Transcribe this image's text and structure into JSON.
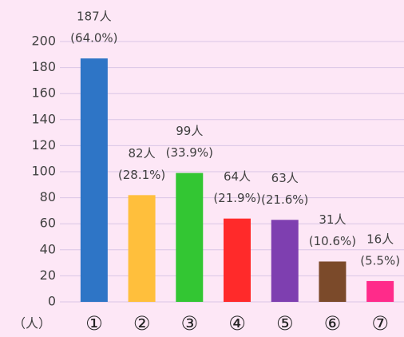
{
  "chart_data": {
    "type": "bar",
    "y_unit_label": "（人）",
    "categories": [
      "①",
      "②",
      "③",
      "④",
      "⑤",
      "⑥",
      "⑦"
    ],
    "values": [
      187,
      82,
      99,
      64,
      63,
      31,
      16
    ],
    "value_labels": [
      "187人",
      "82人",
      "99人",
      "64人",
      "63人",
      "31人",
      "16人"
    ],
    "share_labels": [
      "(64.0%)",
      "(28.1%)",
      "(33.9%)",
      "(21.9%)",
      "(21.6%)",
      "(10.6%)",
      "(5.5%)"
    ],
    "colors": [
      "#2e75c6",
      "#ffbf3c",
      "#33c633",
      "#ff2a2a",
      "#7e3fb0",
      "#7b4a2a",
      "#ff2b8a"
    ],
    "ylim": [
      0,
      200
    ],
    "yticks": [
      0,
      20,
      40,
      60,
      80,
      100,
      120,
      140,
      160,
      180,
      200
    ],
    "grid": true
  }
}
